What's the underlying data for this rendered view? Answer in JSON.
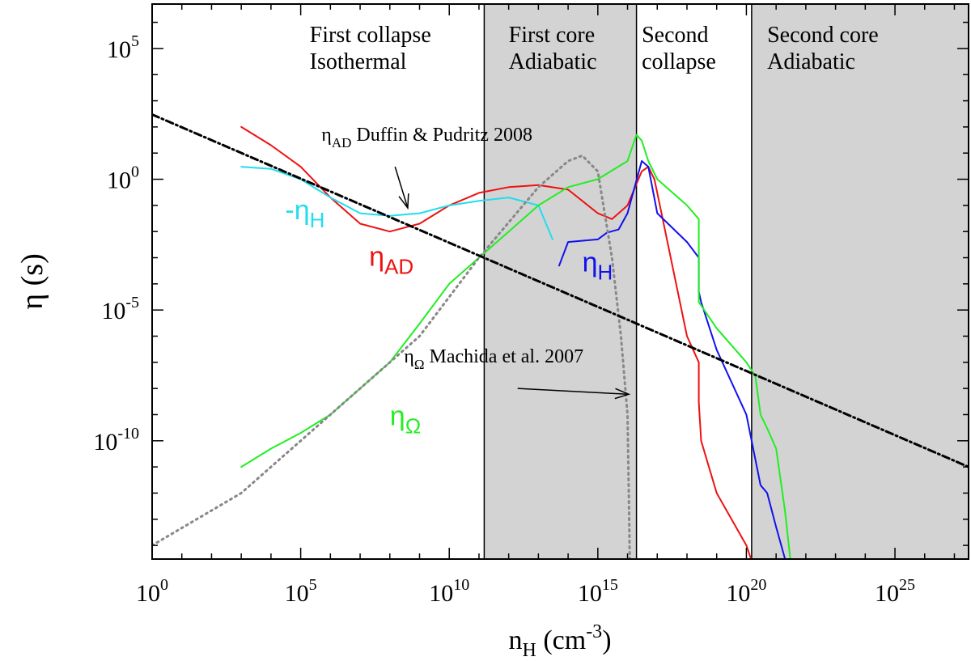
{
  "chart_data": {
    "type": "line",
    "xscale": "log",
    "yscale": "log",
    "xlim": [
      1,
      3e+27
    ],
    "ylim": [
      3e-15,
      5000000.0
    ],
    "xlabel": {
      "main": "n",
      "sub": "H",
      "unit": " (cm",
      "sup": "-3",
      "close": ")"
    },
    "ylabel": {
      "main": "η",
      "unit": " (s)"
    },
    "x_ticks": [
      {
        "value": 1,
        "base": "10",
        "exp": "0"
      },
      {
        "value": 100000.0,
        "base": "10",
        "exp": "5"
      },
      {
        "value": 10000000000.0,
        "base": "10",
        "exp": "10"
      },
      {
        "value": 1000000000000000.0,
        "base": "10",
        "exp": "15"
      },
      {
        "value": 1e+20,
        "base": "10",
        "exp": "20"
      },
      {
        "value": 1e+25,
        "base": "10",
        "exp": "25"
      }
    ],
    "y_ticks": [
      {
        "value": 100000.0,
        "base": "10",
        "exp": "5"
      },
      {
        "value": 1,
        "base": "10",
        "exp": "0"
      },
      {
        "value": 1e-05,
        "base": "10",
        "exp": "-5"
      },
      {
        "value": 1e-10,
        "base": "10",
        "exp": "-10"
      }
    ],
    "shaded_regions": [
      {
        "x_from": 150000000000.0,
        "x_to": 2e+16,
        "color": "#d3d3d3"
      },
      {
        "x_from": 1.5e+20,
        "x_to": 3e+27,
        "color": "#d3d3d3"
      }
    ],
    "vertical_lines": [
      150000000000.0,
      2e+16,
      1.5e+20
    ],
    "region_labels": [
      {
        "lines": [
          "First collapse",
          "Isothermal"
        ],
        "x_left": 200000.0
      },
      {
        "lines": [
          "First core",
          "Adiabatic"
        ],
        "x_left": 1000000000000.0
      },
      {
        "lines": [
          "Second",
          "collapse"
        ],
        "x_left": 3e+16
      },
      {
        "lines": [
          "Second core",
          "Adiabatic"
        ],
        "x_left": 5e+20
      }
    ],
    "series": [
      {
        "name": "ηAD",
        "color": "#ee1111",
        "style": "solid",
        "points": [
          [
            1000.0,
            100
          ],
          [
            10000.0,
            20
          ],
          [
            100000.0,
            3
          ],
          [
            1000000.0,
            0.2
          ],
          [
            10000000.0,
            0.02
          ],
          [
            100000000.0,
            0.01
          ],
          [
            1000000000.0,
            0.02
          ],
          [
            10000000000.0,
            0.1
          ],
          [
            100000000000.0,
            0.3
          ],
          [
            1000000000000.0,
            0.5
          ],
          [
            10000000000000.0,
            0.6
          ],
          [
            100000000000000.0,
            0.4
          ],
          [
            1000000000000000.0,
            0.05
          ],
          [
            3000000000000000.0,
            0.03
          ],
          [
            1e+16,
            0.1
          ],
          [
            3e+16,
            2
          ],
          [
            5e+16,
            3
          ],
          [
            8e+16,
            1
          ],
          [
            1e+17,
            0.3
          ],
          [
            1e+18,
            1e-06
          ],
          [
            2.5e+18,
            1e-07
          ],
          [
            2.5e+18,
            3e-09
          ],
          [
            3e+18,
            1e-10
          ],
          [
            1e+19,
            1e-12
          ],
          [
            1e+20,
            1e-14
          ],
          [
            2e+20,
            1e-15
          ]
        ]
      },
      {
        "name": "-ηH",
        "color": "#22ddee",
        "style": "solid",
        "points": [
          [
            1000.0,
            3
          ],
          [
            10000.0,
            2.5
          ],
          [
            100000.0,
            1
          ],
          [
            1000000.0,
            0.2
          ],
          [
            10000000.0,
            0.05
          ],
          [
            100000000.0,
            0.04
          ],
          [
            1000000000.0,
            0.05
          ],
          [
            10000000000.0,
            0.1
          ],
          [
            100000000000.0,
            0.15
          ],
          [
            1000000000000.0,
            0.2
          ],
          [
            10000000000000.0,
            0.1
          ],
          [
            30000000000000.0,
            0.005
          ]
        ]
      },
      {
        "name": "ηH",
        "color": "#1111ee",
        "style": "solid",
        "points": [
          [
            50000000000000.0,
            0.0005
          ],
          [
            100000000000000.0,
            0.004
          ],
          [
            1000000000000000.0,
            0.005
          ],
          [
            2000000000000000.0,
            0.009
          ],
          [
            5000000000000000.0,
            0.012
          ],
          [
            1e+16,
            0.05
          ],
          [
            3e+16,
            5
          ],
          [
            5e+16,
            3
          ],
          [
            1e+17,
            0.05
          ],
          [
            1e+18,
            0.004
          ],
          [
            2.5e+18,
            0.001
          ],
          [
            2.5e+18,
            5e-05
          ],
          [
            3e+18,
            2e-05
          ],
          [
            1e+19,
            3e-07
          ],
          [
            1e+20,
            1e-09
          ],
          [
            1.5e+20,
            1e-10
          ],
          [
            3e+20,
            2e-12
          ],
          [
            5e+20,
            1e-12
          ],
          [
            1e+21,
            5e-14
          ],
          [
            2e+21,
            3e-15
          ]
        ]
      },
      {
        "name": "ηΩ",
        "color": "#22ee22",
        "style": "solid",
        "points": [
          [
            1000.0,
            1e-11
          ],
          [
            10000.0,
            5e-11
          ],
          [
            100000.0,
            2e-10
          ],
          [
            1000000.0,
            1e-09
          ],
          [
            10000000.0,
            1e-08
          ],
          [
            100000000.0,
            1e-07
          ],
          [
            1000000000.0,
            3e-06
          ],
          [
            10000000000.0,
            0.0001
          ],
          [
            100000000000.0,
            0.001
          ],
          [
            1000000000000.0,
            0.01
          ],
          [
            10000000000000.0,
            0.1
          ],
          [
            100000000000000.0,
            0.5
          ],
          [
            1000000000000000.0,
            1
          ],
          [
            1e+16,
            5
          ],
          [
            2e+16,
            50
          ],
          [
            3e+16,
            30
          ],
          [
            5e+16,
            5
          ],
          [
            1e+17,
            1
          ],
          [
            1e+18,
            0.1
          ],
          [
            2.5e+18,
            0.03
          ],
          [
            2.5e+18,
            2e-05
          ],
          [
            3e+18,
            1.5e-05
          ],
          [
            1e+19,
            2e-06
          ],
          [
            1e+20,
            1e-07
          ],
          [
            2e+20,
            3e-08
          ],
          [
            3e+20,
            1e-09
          ],
          [
            5e+20,
            3e-10
          ],
          [
            1e+21,
            5e-11
          ],
          [
            2e+21,
            2e-13
          ],
          [
            3e+21,
            3e-15
          ]
        ]
      },
      {
        "name": "ηΩ Machida et al. 2007",
        "color": "#888888",
        "style": "dotted",
        "points": [
          [
            1,
            1e-14
          ],
          [
            1000.0,
            1e-12
          ],
          [
            100000.0,
            1e-10
          ],
          [
            10000000.0,
            1e-08
          ],
          [
            1000000000.0,
            1e-06
          ],
          [
            100000000000.0,
            0.001
          ],
          [
            10000000000000.0,
            0.5
          ],
          [
            100000000000000.0,
            5
          ],
          [
            300000000000000.0,
            8
          ],
          [
            1000000000000000.0,
            2
          ],
          [
            3000000000000000.0,
            0.001
          ],
          [
            6000000000000000.0,
            1e-06
          ],
          [
            1e+16,
            1e-09
          ],
          [
            1.1e+16,
            1e-12
          ],
          [
            1.2e+16,
            1e-15
          ]
        ]
      },
      {
        "name": "ηAD Duffin & Pudritz 2008",
        "color": "#000000",
        "style": "dashdot",
        "points": [
          [
            1,
            300
          ],
          [
            3e+27,
            1e-11
          ]
        ]
      }
    ],
    "curve_labels": [
      {
        "main": "-η",
        "sub": "H",
        "color": "#22ddee",
        "x": 30000.0,
        "y": 0.03
      },
      {
        "main": "η",
        "sub": "AD",
        "color": "#ee1111",
        "x": 20000000.0,
        "y": 0.0005
      },
      {
        "main": "η",
        "sub": "H",
        "color": "#1111ee",
        "x": 300000000000000.0,
        "y": 0.0003
      },
      {
        "main": "η",
        "sub": "Ω",
        "color": "#22ee22",
        "x": 100000000.0,
        "y": 4e-10
      }
    ],
    "annotations": [
      {
        "main": "η",
        "sub": "AD",
        "rest": " Duffin & Pudritz 2008",
        "text_x": 500000.0,
        "text_y": 30,
        "arrow_from": [
          150000000.0,
          3
        ],
        "arrow_to": [
          400000000.0,
          0.08
        ]
      },
      {
        "main": "η",
        "sub": "Ω",
        "rest": " Machida et al. 2007",
        "text_x": 300000000.0,
        "text_y": 1e-07,
        "arrow_from": [
          2000000000000.0,
          1e-08
        ],
        "arrow_to": [
          1.1e+16,
          6e-09
        ]
      }
    ]
  }
}
